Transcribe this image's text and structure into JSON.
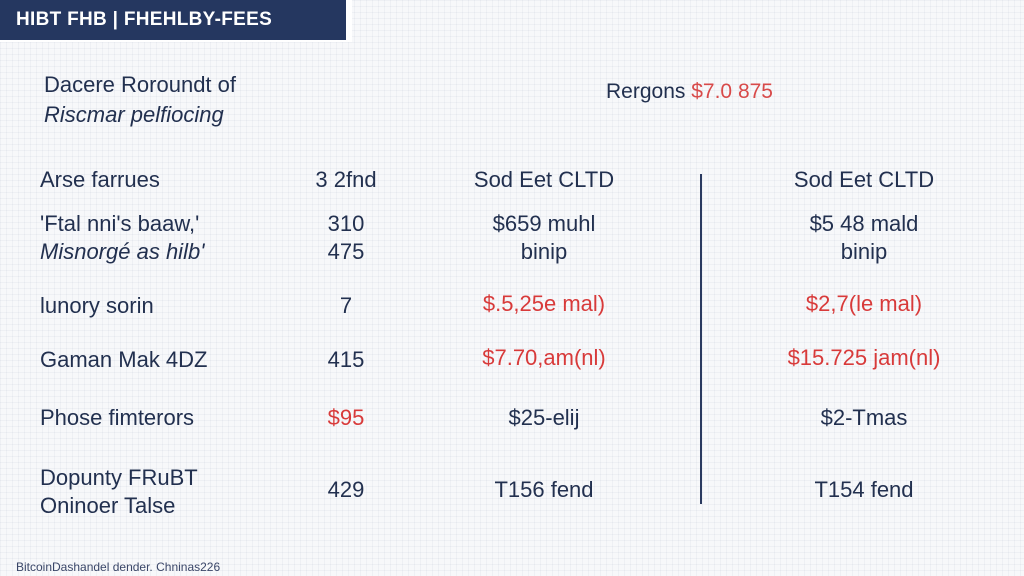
{
  "banner": {
    "title": "HIBT FHB | FHEHLBY-FEES"
  },
  "heading": {
    "line1": "Dacere Roroundt of",
    "line2": "Riscmar pelfiocing"
  },
  "regions": {
    "label": "Rergons",
    "value": "$7.0 875"
  },
  "colors": {
    "banner": "#253760",
    "red": "#d83a3a",
    "navy": "#22304f"
  },
  "table": {
    "header": {
      "label": "Arse farrues",
      "num": "3 2fnd",
      "col_a": "Sod Eet CLTD",
      "col_b": "Sod Eet CLTD"
    },
    "rows": [
      {
        "label": [
          "'Ftal nni's baaw,'",
          "Misnorgé as hilb'"
        ],
        "num": [
          "310",
          "475"
        ],
        "col_a": [
          "$659 muhl",
          "binip"
        ],
        "col_b": [
          "$5 48 mald",
          "binip"
        ]
      },
      {
        "label": [
          "lunory sorin"
        ],
        "num": [
          "7"
        ],
        "col_a": [
          "$.5,25e mal)"
        ],
        "col_b": [
          "$2,7(le mal)"
        ]
      },
      {
        "label": [
          "Gaman Mak 4DZ"
        ],
        "num": [
          "415"
        ],
        "col_a": [
          "$7.70,am(nl)"
        ],
        "col_b": [
          "$15.725 jam(nl)"
        ]
      },
      {
        "label": [
          "Phose fimterors"
        ],
        "num": [
          "$95"
        ],
        "col_a": [
          "$25-elij"
        ],
        "col_b": [
          "$2-Tmas"
        ]
      },
      {
        "label": [
          "Dopunty FRuBT",
          "Oninoer Talse"
        ],
        "num": [
          "429"
        ],
        "col_a": [
          "T156 fend"
        ],
        "col_b": [
          "T154 fend"
        ]
      }
    ]
  },
  "footer": {
    "text": "BitcoinDashandel dender. Chninas226"
  }
}
